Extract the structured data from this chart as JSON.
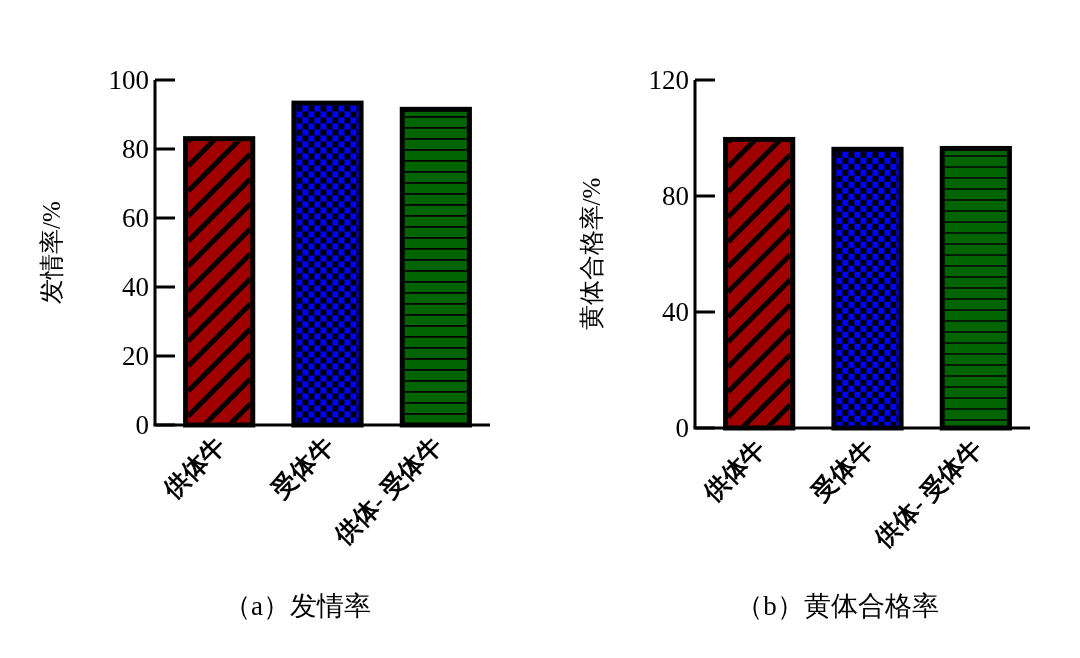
{
  "chart_data": [
    {
      "type": "bar",
      "title": "（a）发情率",
      "ylabel": "发情率/%",
      "categories": [
        "供体牛",
        "受体牛",
        "供体- 受体牛"
      ],
      "values": [
        83,
        93.3,
        91.5
      ],
      "colors": [
        "#a00000",
        "#0000ff",
        "#006400"
      ],
      "ylim": [
        0,
        100
      ],
      "yticks": [
        0,
        20,
        40,
        60,
        80,
        100
      ]
    },
    {
      "type": "bar",
      "title": "（b）黄体合格率",
      "ylabel": "黄体合格率/%",
      "categories": [
        "供体牛",
        "受体牛",
        "供体- 受体牛"
      ],
      "values": [
        99.5,
        96.1,
        96.4
      ],
      "colors": [
        "#a00000",
        "#0000ff",
        "#006400"
      ],
      "ylim": [
        0,
        120
      ],
      "yticks": [
        0,
        40,
        80,
        120
      ]
    }
  ]
}
